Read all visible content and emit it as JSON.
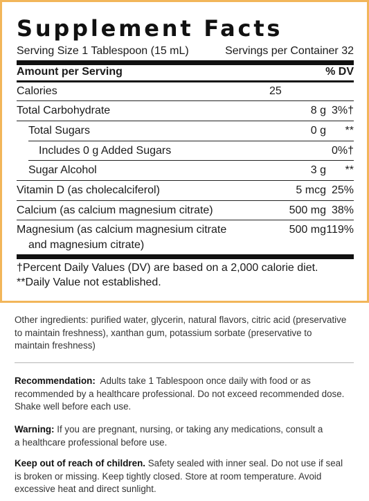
{
  "title": "Supplement Facts",
  "serving_size": "Serving Size 1 Tablespoon (15 mL)",
  "servings_per_container": "Servings per Container 32",
  "header": {
    "amount_label": "Amount per Serving",
    "dv_label": "% DV"
  },
  "nutrients": [
    {
      "name": "Calories",
      "amount": "25",
      "dv": ""
    },
    {
      "name": "Total Carbohydrate",
      "amount": "8 g",
      "dv": "3%†"
    },
    {
      "name": "Total Sugars",
      "amount": "0 g",
      "dv": "**"
    },
    {
      "name": "Includes 0 g Added Sugars",
      "amount": "",
      "dv": "0%†"
    },
    {
      "name": "Sugar Alcohol",
      "amount": "3 g",
      "dv": "**"
    },
    {
      "name": "Vitamin D (as cholecalciferol)",
      "amount": "5 mcg",
      "dv": "25%"
    },
    {
      "name": "Calcium (as calcium magnesium citrate)",
      "amount": "500 mg",
      "dv": "38%"
    },
    {
      "name": "Magnesium (as calcium magnesium citrate",
      "name_line2": "and magnesium citrate)",
      "amount": "500 mg",
      "dv": "119%"
    }
  ],
  "footnotes": [
    "†Percent Daily Values (DV) are based on a 2,000 calorie diet.",
    "**Daily Value not established."
  ],
  "other_ingredients": [
    "Other ingredients: purified water, glycerin, natural flavors, citric acid (preservative",
    "to maintain freshness), xanthan gum, potassium sorbate (preservative to",
    "maintain freshness)"
  ],
  "recommendation": {
    "label": "Recommendation:",
    "lines": [
      "  Adults take 1 Tablespoon once daily with food or as",
      "recommended by a healthcare professional. Do not exceed recommended dose.",
      "Shake well before each use."
    ]
  },
  "warning": {
    "label": "Warning:",
    "lines": [
      " If you are pregnant, nursing, or taking any medications, consult a",
      "a healthcare professional before use."
    ]
  },
  "keep_out": {
    "label": "Keep out of reach of children.",
    "lines": [
      " Safety sealed with inner seal. Do not use if seal",
      "is broken or missing. Keep tightly closed. Store at room temperature. Avoid",
      "excessive heat and direct sunlight."
    ]
  },
  "colors": {
    "border": "#f2b65a",
    "text": "#1a1a1a",
    "rule": "#111111"
  }
}
